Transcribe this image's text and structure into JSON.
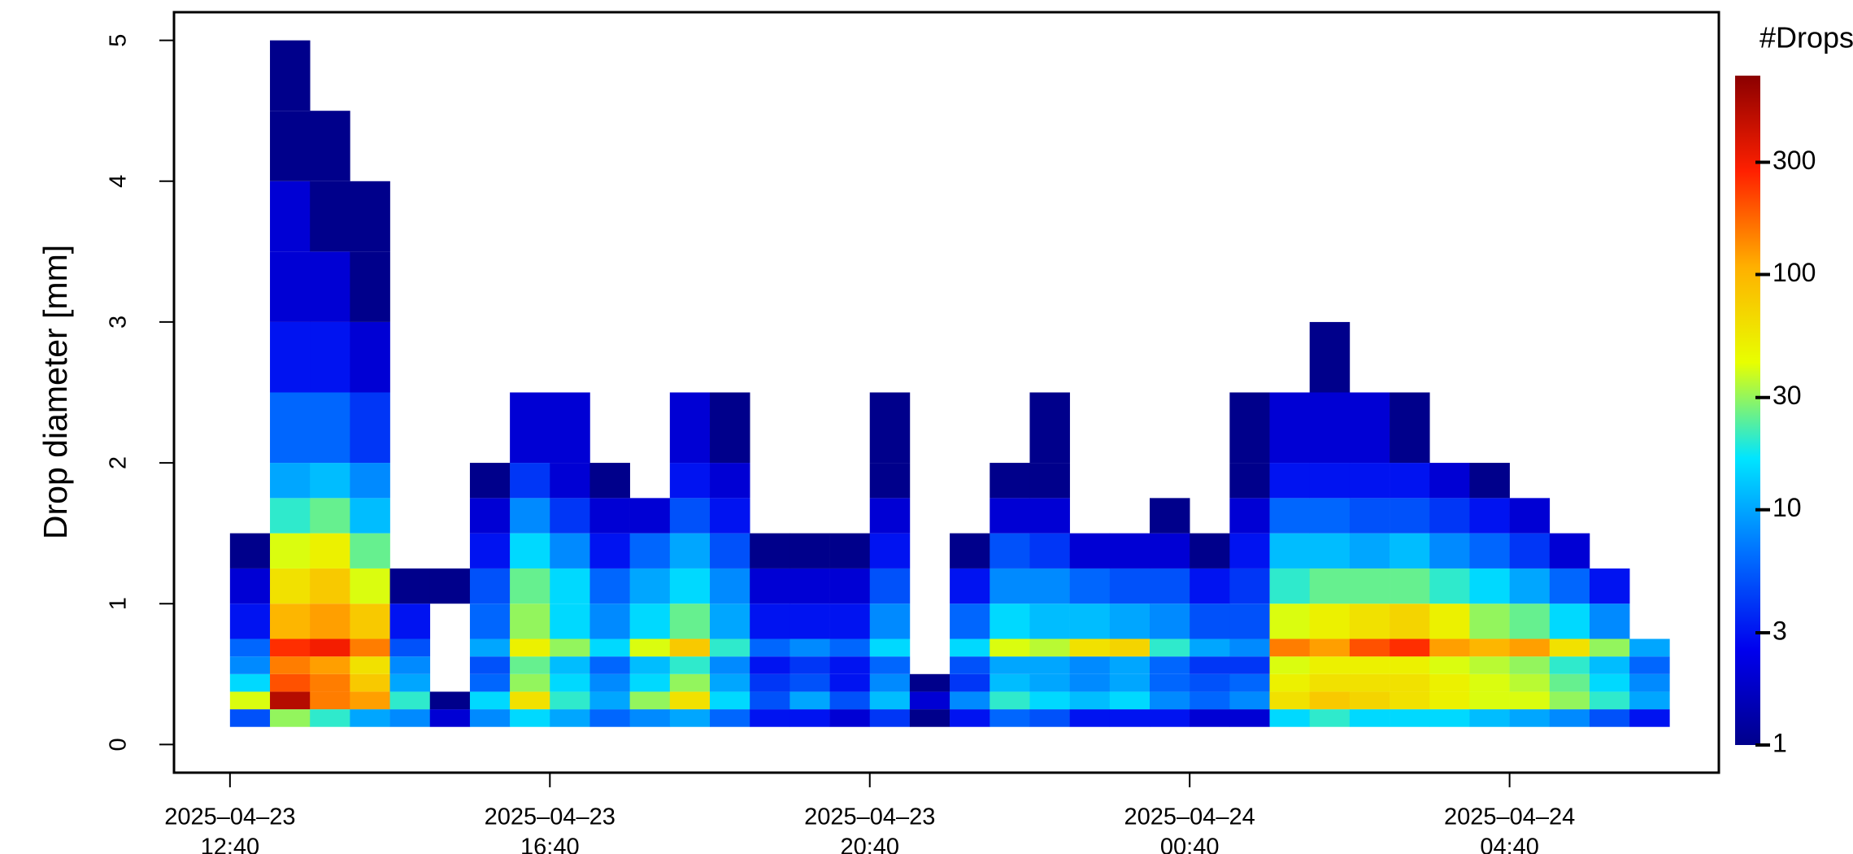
{
  "chart_data": {
    "type": "heatmap",
    "y_label": "Drop diameter [mm]",
    "x": [
      "2025-04-23 12:40",
      "2025-04-23 13:10",
      "2025-04-23 13:40",
      "2025-04-23 14:10",
      "2025-04-23 14:40",
      "2025-04-23 15:10",
      "2025-04-23 15:40",
      "2025-04-23 16:10",
      "2025-04-23 16:40",
      "2025-04-23 17:10",
      "2025-04-23 17:40",
      "2025-04-23 18:10",
      "2025-04-23 18:40",
      "2025-04-23 19:10",
      "2025-04-23 19:40",
      "2025-04-23 20:10",
      "2025-04-23 20:40",
      "2025-04-23 21:10",
      "2025-04-23 21:40",
      "2025-04-23 22:10",
      "2025-04-23 22:40",
      "2025-04-23 23:10",
      "2025-04-23 23:40",
      "2025-04-24 00:10",
      "2025-04-24 00:40",
      "2025-04-24 01:10",
      "2025-04-24 01:40",
      "2025-04-24 02:10",
      "2025-04-24 02:40",
      "2025-04-24 03:10",
      "2025-04-24 03:40",
      "2025-04-24 04:10",
      "2025-04-24 04:40",
      "2025-04-24 05:10",
      "2025-04-24 05:40",
      "2025-04-24 06:10",
      "2025-04-24 06:40"
    ],
    "y_edges": [
      0.125,
      0.25,
      0.375,
      0.5,
      0.625,
      0.75,
      1,
      1.25,
      1.5,
      1.75,
      2,
      2.5,
      3,
      3.5,
      4,
      4.5,
      5
    ],
    "z": [
      [
        5,
        40,
        15,
        8,
        6,
        3,
        2,
        1,
        null,
        null,
        null,
        null,
        null,
        null,
        null,
        null
      ],
      [
        30,
        500,
        200,
        150,
        250,
        100,
        60,
        40,
        20,
        10,
        6,
        3,
        2,
        2,
        1,
        1
      ],
      [
        20,
        150,
        150,
        120,
        300,
        120,
        80,
        50,
        25,
        12,
        6,
        3,
        2,
        1,
        1,
        null
      ],
      [
        10,
        120,
        80,
        60,
        150,
        80,
        40,
        25,
        12,
        8,
        4,
        2,
        1,
        1,
        null,
        null
      ],
      [
        8,
        20,
        10,
        8,
        5,
        3,
        1,
        null,
        null,
        null,
        null,
        null,
        null,
        null,
        null,
        null
      ],
      [
        2,
        1,
        null,
        null,
        null,
        null,
        1,
        null,
        null,
        null,
        null,
        null,
        null,
        null,
        null,
        null
      ],
      [
        8,
        15,
        6,
        5,
        10,
        6,
        5,
        3,
        2,
        1,
        null,
        null,
        null,
        null,
        null,
        null
      ],
      [
        15,
        60,
        30,
        25,
        50,
        30,
        25,
        15,
        8,
        4,
        2,
        null,
        null,
        null,
        null,
        null
      ],
      [
        10,
        20,
        15,
        12,
        30,
        15,
        15,
        8,
        4,
        2,
        2,
        null,
        null,
        null,
        null,
        null
      ],
      [
        6,
        10,
        8,
        6,
        15,
        8,
        6,
        3,
        2,
        1,
        null,
        null,
        null,
        null,
        null,
        null
      ],
      [
        8,
        30,
        15,
        12,
        40,
        15,
        10,
        6,
        2,
        null,
        null,
        null,
        null,
        null,
        null,
        null
      ],
      [
        10,
        60,
        30,
        20,
        80,
        25,
        15,
        10,
        5,
        3,
        2,
        null,
        null,
        null,
        null,
        null
      ],
      [
        6,
        15,
        10,
        8,
        20,
        10,
        8,
        5,
        3,
        2,
        1,
        null,
        null,
        null,
        null,
        null
      ],
      [
        3,
        5,
        4,
        3,
        6,
        3,
        2,
        1,
        null,
        null,
        null,
        null,
        null,
        null,
        null,
        null
      ],
      [
        3,
        10,
        5,
        4,
        8,
        3,
        2,
        1,
        null,
        null,
        null,
        null,
        null,
        null,
        null,
        null
      ],
      [
        2,
        5,
        3,
        3,
        6,
        3,
        2,
        1,
        null,
        null,
        null,
        null,
        null,
        null,
        null,
        null
      ],
      [
        4,
        12,
        8,
        6,
        15,
        8,
        5,
        3,
        2,
        1,
        1,
        null,
        null,
        null,
        null,
        null
      ],
      [
        1,
        2,
        1,
        null,
        null,
        null,
        null,
        null,
        null,
        null,
        null,
        null,
        null,
        null,
        null,
        null
      ],
      [
        3,
        8,
        4,
        5,
        15,
        6,
        3,
        1,
        null,
        null,
        null,
        null,
        null,
        null,
        null,
        null
      ],
      [
        6,
        20,
        12,
        10,
        40,
        15,
        8,
        5,
        2,
        1,
        null,
        null,
        null,
        null,
        null,
        null
      ],
      [
        5,
        15,
        10,
        10,
        35,
        12,
        8,
        4,
        2,
        1,
        1,
        null,
        null,
        null,
        null,
        null
      ],
      [
        3,
        12,
        8,
        8,
        60,
        12,
        6,
        2,
        null,
        null,
        null,
        null,
        null,
        null,
        null,
        null
      ],
      [
        3,
        15,
        10,
        10,
        70,
        10,
        5,
        2,
        null,
        null,
        null,
        null,
        null,
        null,
        null,
        null
      ],
      [
        3,
        8,
        6,
        6,
        20,
        8,
        5,
        2,
        1,
        null,
        null,
        null,
        null,
        null,
        null,
        null
      ],
      [
        2,
        6,
        5,
        4,
        10,
        5,
        3,
        1,
        null,
        null,
        null,
        null,
        null,
        null,
        null,
        null
      ],
      [
        2,
        8,
        6,
        4,
        8,
        5,
        4,
        3,
        2,
        1,
        1,
        null,
        null,
        null,
        null,
        null
      ],
      [
        15,
        60,
        50,
        40,
        150,
        40,
        20,
        12,
        6,
        3,
        2,
        null,
        null,
        null,
        null,
        null
      ],
      [
        20,
        80,
        60,
        50,
        120,
        50,
        25,
        12,
        6,
        3,
        2,
        1,
        null,
        null,
        null,
        null
      ],
      [
        15,
        70,
        60,
        50,
        200,
        60,
        25,
        10,
        5,
        3,
        2,
        null,
        null,
        null,
        null,
        null
      ],
      [
        15,
        60,
        60,
        50,
        250,
        70,
        25,
        12,
        5,
        3,
        1,
        null,
        null,
        null,
        null,
        null
      ],
      [
        15,
        50,
        50,
        40,
        120,
        50,
        20,
        8,
        4,
        2,
        null,
        null,
        null,
        null,
        null,
        null
      ],
      [
        12,
        40,
        40,
        35,
        100,
        30,
        15,
        6,
        3,
        1,
        null,
        null,
        null,
        null,
        null,
        null
      ],
      [
        10,
        40,
        35,
        30,
        120,
        25,
        10,
        4,
        2,
        null,
        null,
        null,
        null,
        null,
        null,
        null
      ],
      [
        8,
        30,
        25,
        20,
        60,
        15,
        6,
        2,
        null,
        null,
        null,
        null,
        null,
        null,
        null,
        null
      ],
      [
        5,
        20,
        15,
        12,
        30,
        8,
        3,
        null,
        null,
        null,
        null,
        null,
        null,
        null,
        null,
        null
      ],
      [
        3,
        10,
        8,
        6,
        10,
        null,
        null,
        null,
        null,
        null,
        null,
        null,
        null,
        null,
        null,
        null
      ]
    ],
    "xlim": [
      "2025-04-23 11:58",
      "2025-04-24 07:17"
    ],
    "xticks": [
      {
        "value": "2025-04-23 12:40",
        "label": [
          "2025–04–23",
          "12:40"
        ]
      },
      {
        "value": "2025-04-23 16:40",
        "label": [
          "2025–04–23",
          "16:40"
        ]
      },
      {
        "value": "2025-04-23 20:40",
        "label": [
          "2025–04–23",
          "20:40"
        ]
      },
      {
        "value": "2025-04-24 00:40",
        "label": [
          "2025–04–24",
          "00:40"
        ]
      },
      {
        "value": "2025-04-24 04:40",
        "label": [
          "2025–04–24",
          "04:40"
        ]
      }
    ],
    "ylim": [
      -0.2,
      5.2
    ],
    "yticks": [
      0,
      1,
      2,
      3,
      4,
      5
    ],
    "colorbar": {
      "title": "#Drops",
      "log": true,
      "lim": [
        1,
        700
      ],
      "ticks": [
        1,
        3,
        10,
        30,
        100,
        300
      ],
      "colors": [
        "#00008b",
        "#0000ee",
        "#0070ff",
        "#00e5ff",
        "#e8ff00",
        "#ffb000",
        "#ff2000",
        "#8b0000"
      ]
    }
  }
}
